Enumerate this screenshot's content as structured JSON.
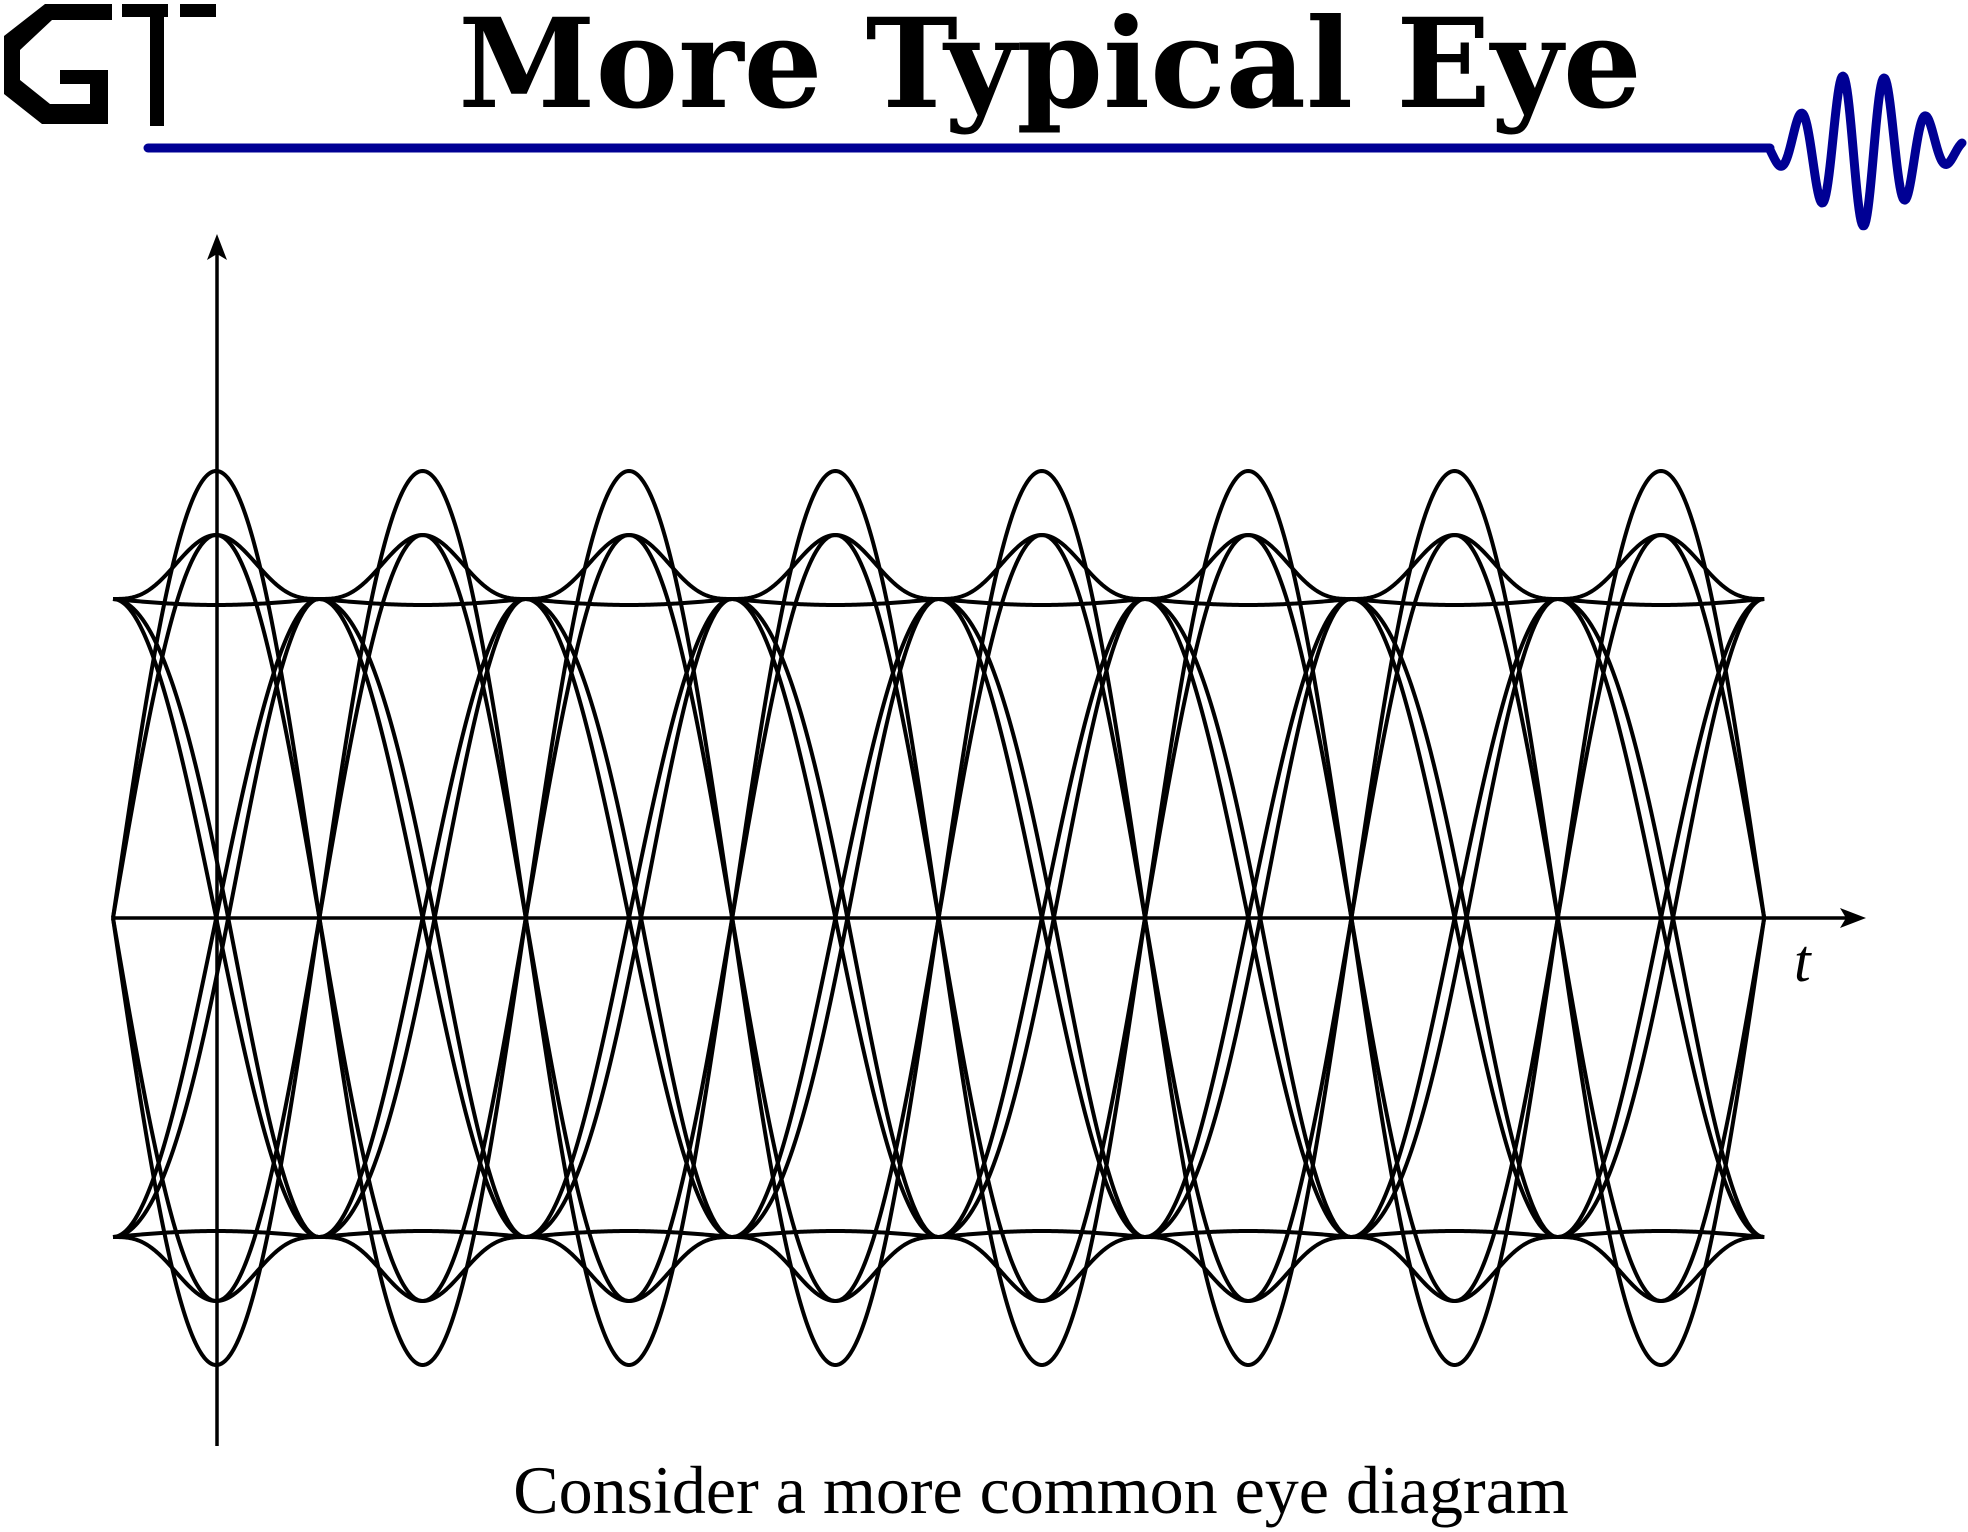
{
  "header": {
    "logo_text": "GT",
    "title": "More Typical Eye",
    "accent_color": "#000094"
  },
  "diagram": {
    "type": "eye_diagram",
    "x_axis_label": "t",
    "trace_color": "#000000"
  },
  "caption": "Consider a more common eye diagram"
}
